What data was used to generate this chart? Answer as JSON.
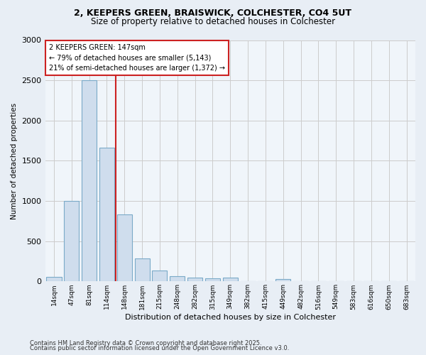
{
  "title_line1": "2, KEEPERS GREEN, BRAISWICK, COLCHESTER, CO4 5UT",
  "title_line2": "Size of property relative to detached houses in Colchester",
  "xlabel": "Distribution of detached houses by size in Colchester",
  "ylabel": "Number of detached properties",
  "categories": [
    "14sqm",
    "47sqm",
    "81sqm",
    "114sqm",
    "148sqm",
    "181sqm",
    "215sqm",
    "248sqm",
    "282sqm",
    "315sqm",
    "349sqm",
    "382sqm",
    "415sqm",
    "449sqm",
    "482sqm",
    "516sqm",
    "549sqm",
    "583sqm",
    "616sqm",
    "650sqm",
    "683sqm"
  ],
  "values": [
    60,
    1000,
    2500,
    1660,
    830,
    290,
    140,
    65,
    50,
    40,
    50,
    0,
    0,
    30,
    0,
    0,
    0,
    0,
    0,
    0,
    0
  ],
  "bar_color": "#cfdded",
  "bar_edge_color": "#7aaac8",
  "vline_color": "#cc2222",
  "vline_x": 3.5,
  "annotation_title": "2 KEEPERS GREEN: 147sqm",
  "annotation_line1": "← 79% of detached houses are smaller (5,143)",
  "annotation_line2": "21% of semi-detached houses are larger (1,372) →",
  "annotation_box_edgecolor": "#cc2222",
  "annotation_fill": "#ffffff",
  "ylim": [
    0,
    3000
  ],
  "yticks": [
    0,
    500,
    1000,
    1500,
    2000,
    2500,
    3000
  ],
  "footer_line1": "Contains HM Land Registry data © Crown copyright and database right 2025.",
  "footer_line2": "Contains public sector information licensed under the Open Government Licence v3.0.",
  "bg_color": "#e8eef5",
  "plot_bg_color": "#f0f5fa",
  "grid_color": "#cccccc",
  "title1_fontsize": 9,
  "title2_fontsize": 8.5
}
